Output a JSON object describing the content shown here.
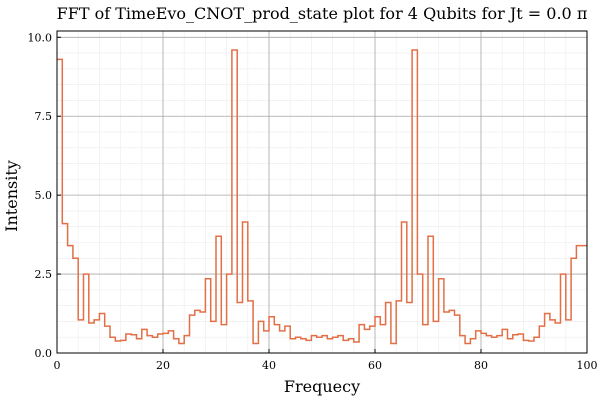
{
  "chart_data": {
    "type": "line",
    "step": true,
    "title": "FFT of TimeEvo_CNOT_prod_state plot for 4 Qubits for Jt = 0.0 π",
    "xlabel": "Frequecy",
    "ylabel": "Intensity",
    "xlim": [
      0,
      100
    ],
    "ylim": [
      0,
      10.2
    ],
    "xticks": [
      0,
      20,
      40,
      60,
      80,
      100
    ],
    "xtick_labels": [
      "0",
      "20",
      "40",
      "60",
      "80",
      "100"
    ],
    "yticks": [
      0.0,
      2.5,
      5.0,
      7.5,
      10.0
    ],
    "ytick_labels": [
      "0.0",
      "2.5",
      "5.0",
      "7.5",
      "10.0"
    ],
    "grid": true,
    "legend": "none",
    "series_color": "#e26f46",
    "x": [
      0,
      1,
      2,
      3,
      4,
      5,
      6,
      7,
      8,
      9,
      10,
      11,
      12,
      13,
      14,
      15,
      16,
      17,
      18,
      19,
      20,
      21,
      22,
      23,
      24,
      25,
      26,
      27,
      28,
      29,
      30,
      31,
      32,
      33,
      34,
      35,
      36,
      37,
      38,
      39,
      40,
      41,
      42,
      43,
      44,
      45,
      46,
      47,
      48,
      49,
      50,
      51,
      52,
      53,
      54,
      55,
      56,
      57,
      58,
      59,
      60,
      61,
      62,
      63,
      64,
      65,
      66,
      67,
      68,
      69,
      70,
      71,
      72,
      73,
      74,
      75,
      76,
      77,
      78,
      79,
      80,
      81,
      82,
      83,
      84,
      85,
      86,
      87,
      88,
      89,
      90,
      91,
      92,
      93,
      94,
      95,
      96,
      97,
      98,
      99,
      100
    ],
    "y": [
      9.3,
      4.1,
      3.4,
      3.0,
      1.05,
      2.5,
      0.95,
      1.05,
      1.25,
      0.85,
      0.5,
      0.38,
      0.4,
      0.6,
      0.58,
      0.45,
      0.75,
      0.55,
      0.5,
      0.6,
      0.62,
      0.7,
      0.45,
      0.3,
      0.55,
      1.2,
      1.35,
      1.3,
      2.35,
      1.0,
      3.7,
      0.9,
      2.5,
      9.6,
      1.6,
      4.15,
      1.65,
      0.3,
      1.0,
      0.7,
      1.15,
      0.9,
      0.7,
      0.85,
      0.45,
      0.5,
      0.45,
      0.4,
      0.55,
      0.5,
      0.55,
      0.45,
      0.5,
      0.55,
      0.4,
      0.45,
      0.35,
      0.9,
      0.75,
      0.85,
      1.15,
      0.9,
      1.6,
      0.3,
      1.65,
      4.15,
      1.6,
      9.6,
      2.5,
      0.9,
      3.7,
      1.0,
      2.35,
      1.3,
      1.35,
      1.2,
      0.55,
      0.3,
      0.45,
      0.7,
      0.62,
      0.55,
      0.5,
      0.55,
      0.75,
      0.45,
      0.58,
      0.6,
      0.4,
      0.38,
      0.5,
      0.85,
      1.25,
      1.05,
      0.95,
      2.5,
      1.05,
      3.0,
      3.4,
      3.4,
      3.4
    ]
  }
}
